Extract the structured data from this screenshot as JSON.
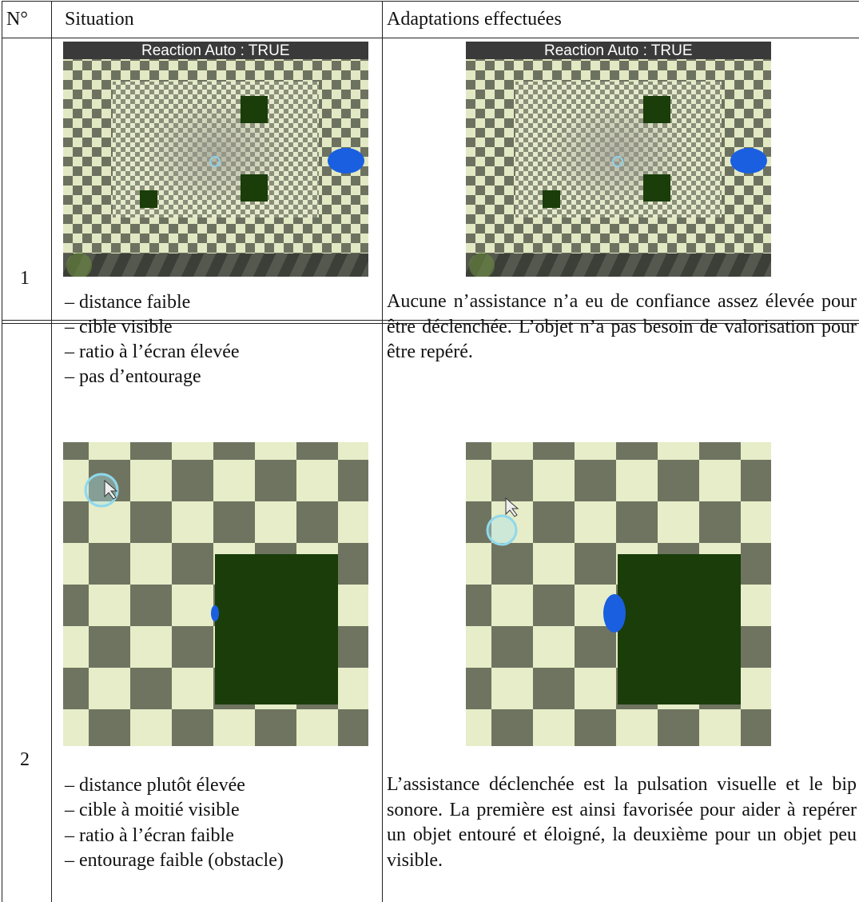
{
  "table": {
    "headers": [
      "N°",
      "Situation",
      "Adaptations effectuées"
    ],
    "screenshot_overlay": "Reaction Auto :  TRUE",
    "rows": [
      {
        "number": "1",
        "situation": [
          "– distance faible",
          "– cible visible",
          "– ratio à l’écran élevée",
          "– pas d’entourage"
        ],
        "adaptation": "Aucune n’assistance n’a eu de confiance assez élevée pour être déclenchée. L’objet n’a pas besoin de valorisation pour être repéré."
      },
      {
        "number": "2",
        "situation": [
          "– distance plutôt élevée",
          "– cible à moitié visible",
          "– ratio à l’écran faible",
          "– entourage faible (obstacle)"
        ],
        "adaptation": "L’assistance déclenchée est la pulsation vi­suelle et le bip sonore. La première est ainsi favorisée pour aider à repérer un objet en­touré et éloigné, la deuxième pour un objet peu visible."
      }
    ]
  }
}
